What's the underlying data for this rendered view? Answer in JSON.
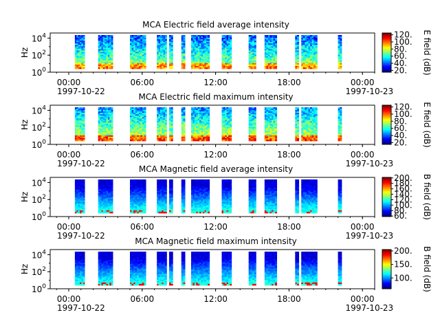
{
  "chart_data": [
    {
      "type": "heatmap",
      "title": "MCA  Electric field average intensity",
      "ylabel": "Hz",
      "y_ticks": [
        {
          "base": "10",
          "exp": "0"
        },
        {
          "base": "10",
          "exp": "2"
        },
        {
          "base": "10",
          "exp": "4"
        }
      ],
      "x_ticks": [
        "00:00",
        "06:00",
        "12:00",
        "18:00",
        "00:00"
      ],
      "x_start_date": "1997-10-22",
      "x_end_date": "1997-10-23",
      "colorbar_label": "E field (dB)",
      "colorbar_ticks": [
        "20.",
        "40.",
        "60.",
        "80.",
        "100.",
        "120."
      ],
      "colorbar_range": [
        15,
        125
      ],
      "field": "electric",
      "colormap": "jet"
    },
    {
      "type": "heatmap",
      "title": "MCA  Electric field maximum intensity",
      "ylabel": "Hz",
      "y_ticks": [
        {
          "base": "10",
          "exp": "0"
        },
        {
          "base": "10",
          "exp": "2"
        },
        {
          "base": "10",
          "exp": "4"
        }
      ],
      "x_ticks": [
        "00:00",
        "06:00",
        "12:00",
        "18:00",
        "00:00"
      ],
      "x_start_date": "1997-10-22",
      "x_end_date": "1997-10-23",
      "colorbar_label": "E field (dB)",
      "colorbar_ticks": [
        "20.",
        "40.",
        "60.",
        "80.",
        "100.",
        "120."
      ],
      "colorbar_range": [
        15,
        125
      ],
      "field": "electric",
      "colormap": "jet"
    },
    {
      "type": "heatmap",
      "title": "MCA  Magnetic field average intensity",
      "ylabel": "Hz",
      "y_ticks": [
        {
          "base": "10",
          "exp": "0"
        },
        {
          "base": "10",
          "exp": "2"
        },
        {
          "base": "10",
          "exp": "4"
        }
      ],
      "x_ticks": [
        "00:00",
        "06:00",
        "12:00",
        "18:00",
        "00:00"
      ],
      "x_start_date": "1997-10-22",
      "x_end_date": "1997-10-23",
      "colorbar_label": "B field (dB)",
      "colorbar_ticks": [
        "60.",
        "80.",
        "100.",
        "120.",
        "140.",
        "160.",
        "180.",
        "200."
      ],
      "colorbar_range": [
        58,
        202
      ],
      "field": "magnetic",
      "colormap": "jet"
    },
    {
      "type": "heatmap",
      "title": "MCA  Magnetic field maximum intensity",
      "ylabel": "Hz",
      "y_ticks": [
        {
          "base": "10",
          "exp": "0"
        },
        {
          "base": "10",
          "exp": "2"
        },
        {
          "base": "10",
          "exp": "4"
        }
      ],
      "x_ticks": [
        "00:00",
        "06:00",
        "12:00",
        "18:00",
        "00:00"
      ],
      "x_start_date": "1997-10-22",
      "x_end_date": "1997-10-23",
      "colorbar_label": "B field (dB)",
      "colorbar_ticks": [
        "100.",
        "150.",
        "200."
      ],
      "colorbar_range": [
        60,
        205
      ],
      "field": "magnetic",
      "colormap": "jet"
    }
  ],
  "data_segments_hours": [
    [
      0.5,
      1.3
    ],
    [
      2.4,
      3.6
    ],
    [
      5.0,
      6.3
    ],
    [
      7.2,
      8.0
    ],
    [
      8.2,
      8.5
    ],
    [
      9.2,
      9.5
    ],
    [
      10.0,
      11.5
    ],
    [
      12.5,
      13.3
    ],
    [
      14.7,
      15.3
    ],
    [
      16.0,
      17.0
    ],
    [
      18.5,
      18.8
    ],
    [
      19.0,
      20.3
    ],
    [
      22.0,
      22.3
    ]
  ]
}
